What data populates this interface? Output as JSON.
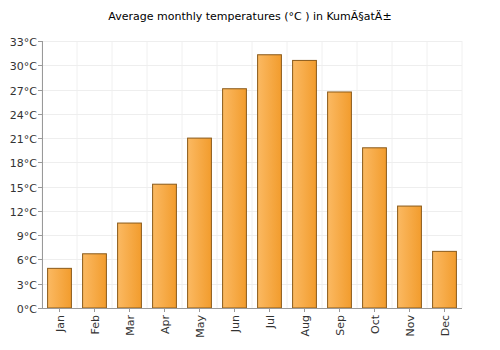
{
  "chart_data": {
    "type": "bar",
    "title": "Average monthly temperatures (°C ) in KumÃ§atÄ±",
    "categories": [
      "Jan",
      "Feb",
      "Mar",
      "Apr",
      "May",
      "Jun",
      "Jul",
      "Aug",
      "Sep",
      "Oct",
      "Nov",
      "Dec"
    ],
    "values": [
      4.9,
      6.7,
      10.5,
      15.3,
      21.0,
      27.1,
      31.3,
      30.6,
      26.7,
      19.8,
      12.6,
      7.0
    ],
    "color": "#f9a12e",
    "ylim": [
      0,
      33
    ],
    "yticks": [
      {
        "value": 0,
        "label": "0°C"
      },
      {
        "value": 3,
        "label": "3°C"
      },
      {
        "value": 6,
        "label": "6°C"
      },
      {
        "value": 9,
        "label": "9°C"
      },
      {
        "value": 12,
        "label": "12°C"
      },
      {
        "value": 15,
        "label": "15°C"
      },
      {
        "value": 18,
        "label": "18°C"
      },
      {
        "value": 21,
        "label": "21°C"
      },
      {
        "value": 24,
        "label": "24°C"
      },
      {
        "value": 27,
        "label": "27°C"
      },
      {
        "value": 30,
        "label": "30°C"
      },
      {
        "value": 33,
        "label": "33°C"
      }
    ],
    "grid": true
  }
}
